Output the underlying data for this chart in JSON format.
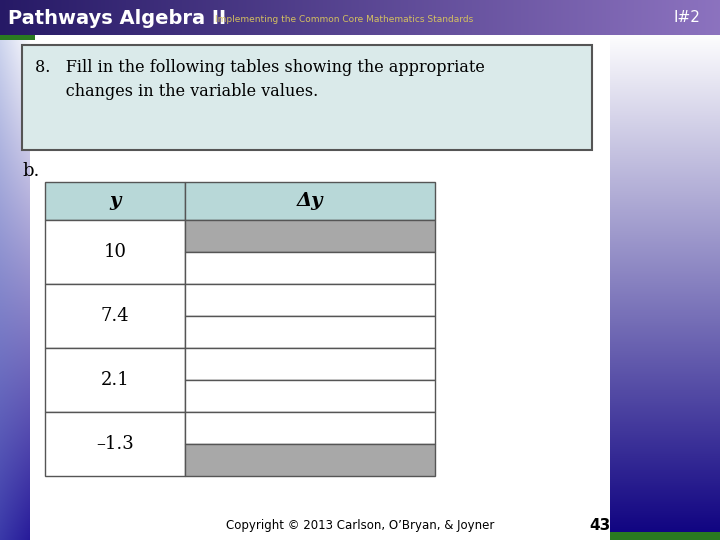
{
  "title_main": "Pathways Algebra II",
  "title_sub": "Implementing the Common Core Mathematics Standards",
  "label_id": "I#2",
  "question_line1": "8.   Fill in the following tables showing the appropriate",
  "question_line2": "      changes in the variable values.",
  "part_label": "b.",
  "col1_header": "y",
  "col2_header": "Δy",
  "y_values": [
    "10",
    "7.4",
    "2.1",
    "–1.3"
  ],
  "header_color": "#b8d8d8",
  "gray_color": "#a8a8a8",
  "white_color": "#ffffff",
  "footer_text": "Copyright © 2013 Carlson, O’Bryan, & Joyner",
  "page_num": "43"
}
